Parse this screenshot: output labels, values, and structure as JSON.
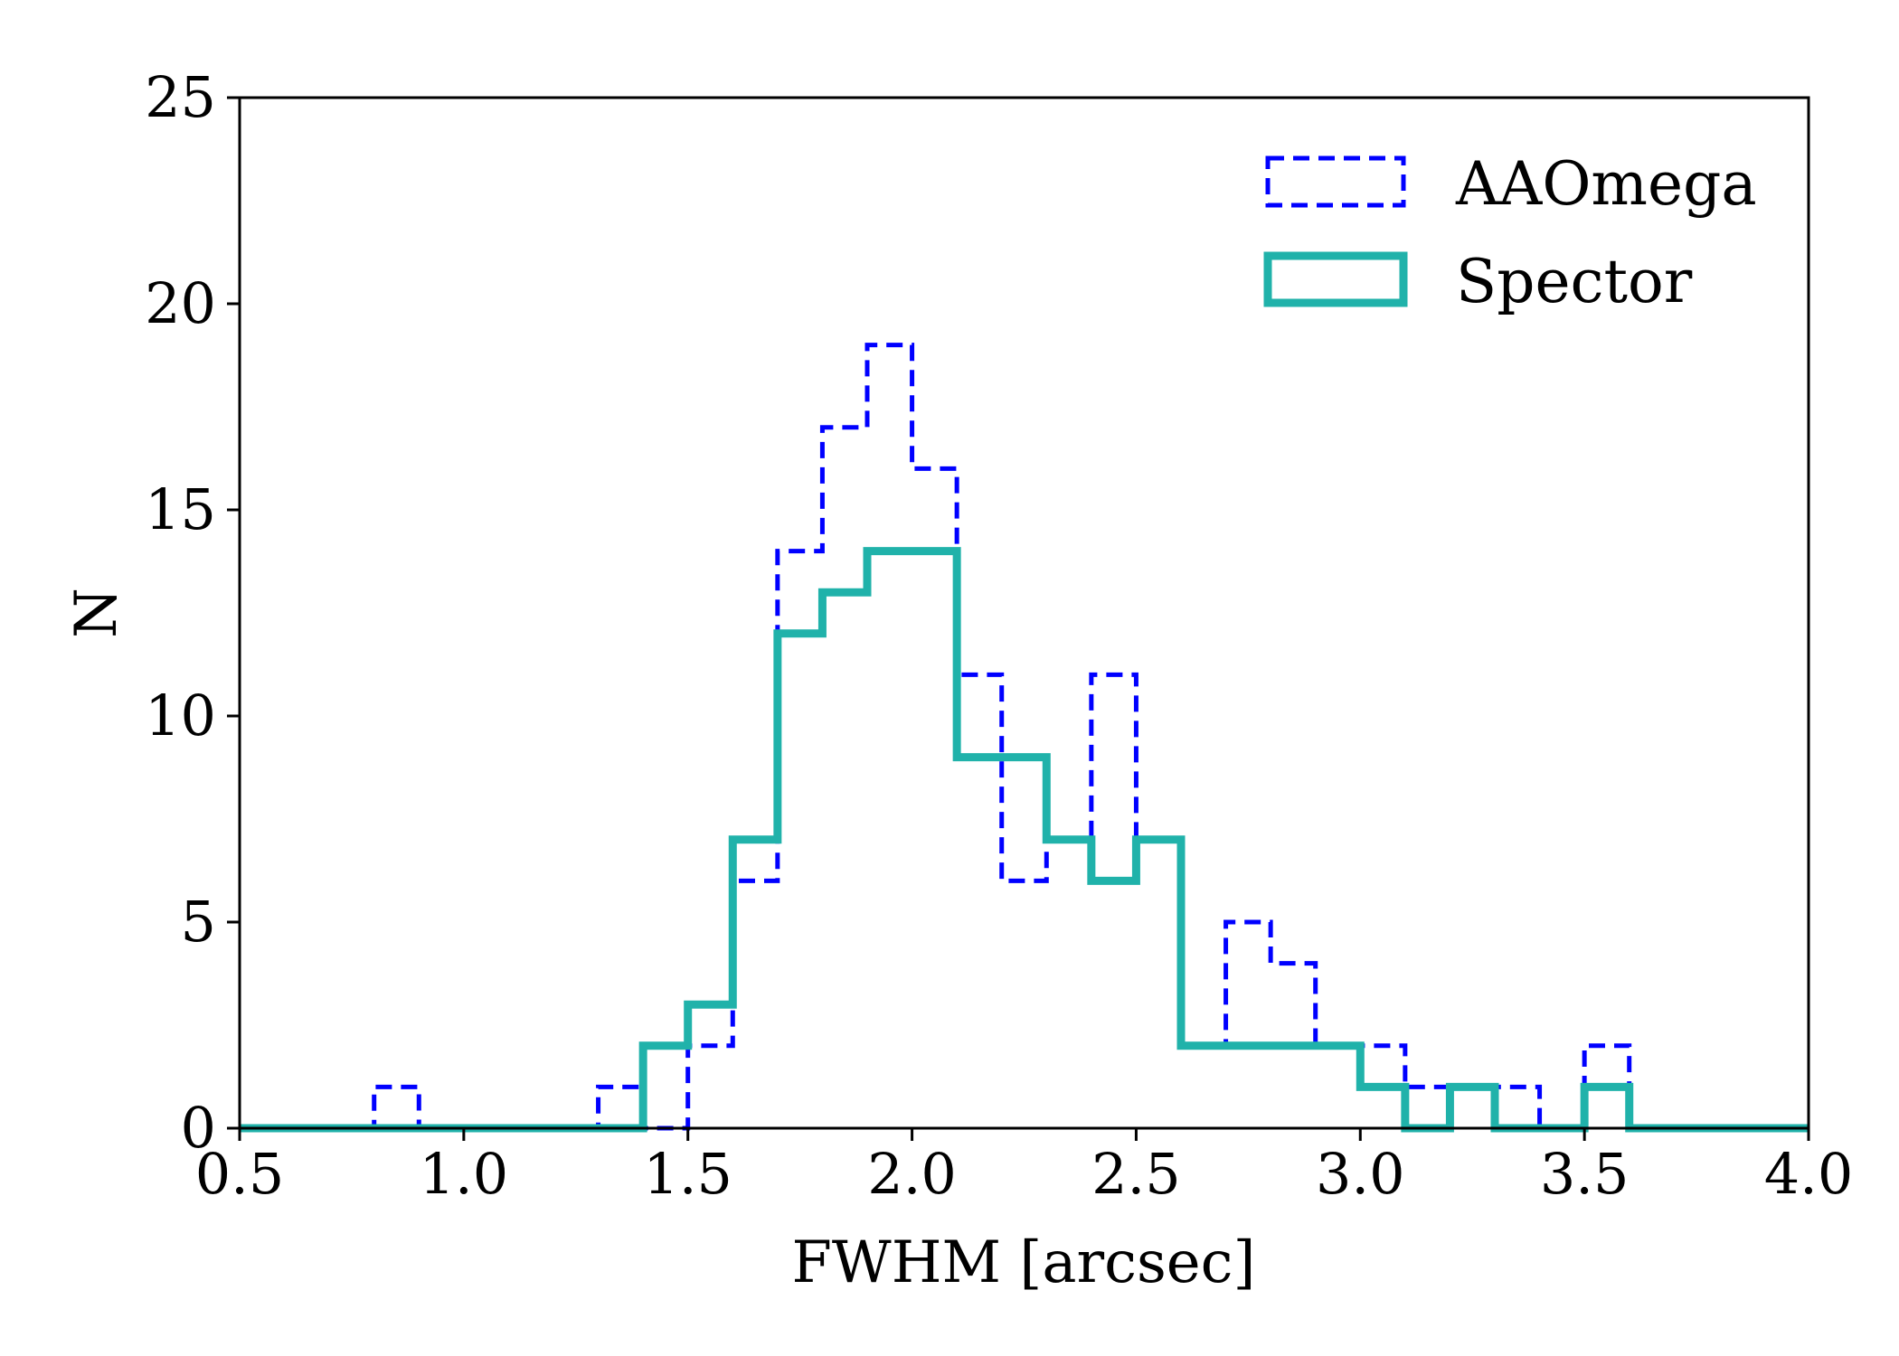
{
  "chart_data": {
    "type": "histogram",
    "title": "",
    "xlabel": "FWHM [arcsec]",
    "ylabel": "N",
    "xlim": [
      0.5,
      4.0
    ],
    "ylim": [
      0,
      25
    ],
    "xticks": [
      0.5,
      1.0,
      1.5,
      2.0,
      2.5,
      3.0,
      3.5,
      4.0
    ],
    "xtick_labels": [
      "0.5",
      "1.0",
      "1.5",
      "2.0",
      "2.5",
      "3.0",
      "3.5",
      "4.0"
    ],
    "yticks": [
      0,
      5,
      10,
      15,
      20,
      25
    ],
    "ytick_labels": [
      "0",
      "5",
      "10",
      "15",
      "20",
      "25"
    ],
    "bin_edges": [
      0.5,
      0.6,
      0.7,
      0.8,
      0.9,
      1.0,
      1.1,
      1.2,
      1.3,
      1.4,
      1.5,
      1.6,
      1.7,
      1.8,
      1.9,
      2.0,
      2.1,
      2.2,
      2.3,
      2.4,
      2.5,
      2.6,
      2.7,
      2.8,
      2.9,
      3.0,
      3.1,
      3.2,
      3.3,
      3.4,
      3.5,
      3.6,
      3.7,
      3.8,
      3.9,
      4.0
    ],
    "legend_position": "top-right",
    "series": [
      {
        "name": "AAOmega",
        "style": "dashed",
        "color": "#0000ff",
        "values": [
          0,
          0,
          0,
          1,
          0,
          0,
          0,
          0,
          1,
          0,
          2,
          6,
          14,
          17,
          19,
          16,
          11,
          6,
          7,
          11,
          7,
          2,
          5,
          4,
          2,
          2,
          1,
          1,
          1,
          0,
          2,
          0,
          0,
          0,
          0
        ]
      },
      {
        "name": "Spector",
        "style": "solid",
        "color": "#20b2aa",
        "values": [
          0,
          0,
          0,
          0,
          0,
          0,
          0,
          0,
          0,
          2,
          3,
          7,
          12,
          13,
          14,
          14,
          9,
          9,
          7,
          6,
          7,
          2,
          2,
          2,
          2,
          1,
          0,
          1,
          0,
          0,
          1,
          0,
          0,
          0,
          0
        ]
      }
    ]
  }
}
